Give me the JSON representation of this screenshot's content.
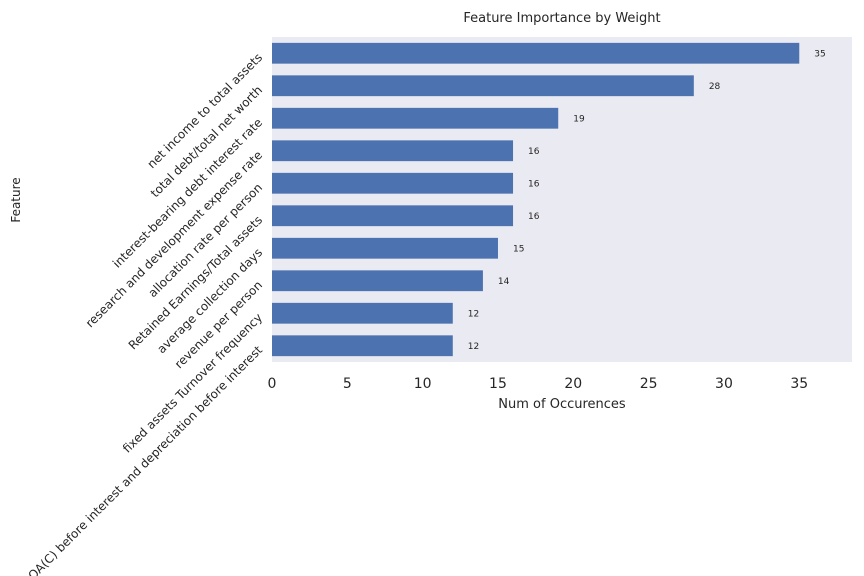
{
  "chart_data": {
    "type": "bar",
    "orientation": "horizontal",
    "title": "Feature Importance by Weight",
    "xlabel": "Num of Occurences",
    "ylabel": "Feature",
    "categories": [
      "net income to total assets",
      "total debt/total net worth",
      "interest-bearing debt interest rate",
      "research and development expense rate",
      "allocation rate per person",
      "Retained Earnings/Total assets",
      "average collection days",
      "revenue per person",
      "fixed assets Turnover frequency",
      "ROA(C) before interest and depreciation before interest"
    ],
    "values": [
      35,
      28,
      19,
      16,
      16,
      16,
      15,
      14,
      12,
      12
    ],
    "data_labels": [
      "35",
      "28",
      "19",
      "16",
      "16",
      "16",
      "15",
      "14",
      "12",
      "12"
    ],
    "xticks": [
      "0",
      "5",
      "10",
      "15",
      "20",
      "25",
      "30",
      "35"
    ],
    "xlim": [
      0,
      38.5
    ],
    "grid": false,
    "colors": {
      "bar": "#4c72b0",
      "background": "#eaeaf2"
    }
  }
}
